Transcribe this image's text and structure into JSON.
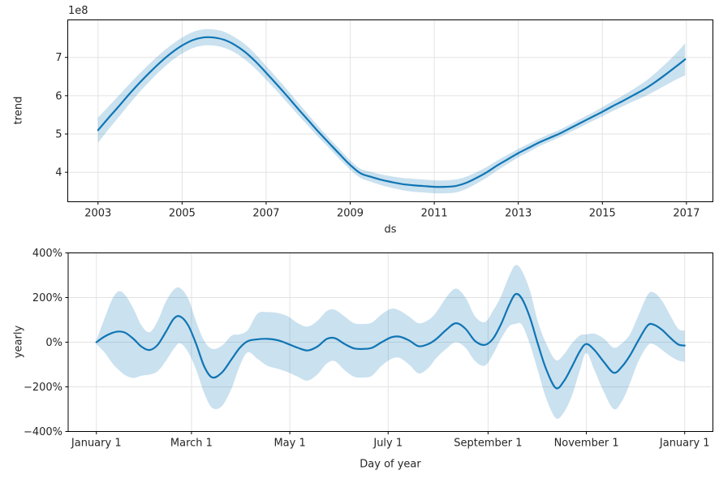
{
  "figure": {
    "background": "#ffffff",
    "colors": {
      "line": "#0f75b4",
      "band": "rgba(15,117,180,0.22)",
      "grid": "#e3e3e3",
      "spine": "#000000",
      "text": "#262626"
    }
  },
  "chart_data": [
    {
      "type": "line",
      "name": "trend-component",
      "title": "",
      "xlabel": "ds",
      "ylabel": "trend",
      "offset_text": "1e8",
      "grid": true,
      "legend_position": "none",
      "xlim": [
        2002.28,
        2017.63
      ],
      "ylim": [
        3.23,
        7.98
      ],
      "x_ticks": [
        {
          "value": 2003,
          "label": "2003"
        },
        {
          "value": 2005,
          "label": "2005"
        },
        {
          "value": 2007,
          "label": "2007"
        },
        {
          "value": 2009,
          "label": "2009"
        },
        {
          "value": 2011,
          "label": "2011"
        },
        {
          "value": 2013,
          "label": "2013"
        },
        {
          "value": 2015,
          "label": "2015"
        },
        {
          "value": 2017,
          "label": "2017"
        }
      ],
      "y_ticks": [
        {
          "value": 4,
          "label": "4"
        },
        {
          "value": 5,
          "label": "5"
        },
        {
          "value": 6,
          "label": "6"
        },
        {
          "value": 7,
          "label": "7"
        }
      ],
      "y_unit": "1e8",
      "series": [
        {
          "name": "trend",
          "points_format": [
            "x_year",
            "value_1e8",
            "lower_1e8",
            "upper_1e8"
          ],
          "points": [
            [
              2003.0,
              5.1,
              4.77,
              5.43
            ],
            [
              2003.25,
              5.42,
              5.12,
              5.72
            ],
            [
              2003.5,
              5.73,
              5.45,
              6.01
            ],
            [
              2003.75,
              6.05,
              5.79,
              6.31
            ],
            [
              2004.0,
              6.35,
              6.11,
              6.59
            ],
            [
              2004.25,
              6.63,
              6.4,
              6.86
            ],
            [
              2004.5,
              6.89,
              6.67,
              7.11
            ],
            [
              2004.75,
              7.12,
              6.91,
              7.33
            ],
            [
              2005.0,
              7.31,
              7.1,
              7.52
            ],
            [
              2005.25,
              7.45,
              7.24,
              7.66
            ],
            [
              2005.5,
              7.52,
              7.31,
              7.73
            ],
            [
              2005.75,
              7.52,
              7.31,
              7.73
            ],
            [
              2006.0,
              7.46,
              7.25,
              7.67
            ],
            [
              2006.25,
              7.33,
              7.13,
              7.53
            ],
            [
              2006.5,
              7.14,
              6.94,
              7.34
            ],
            [
              2006.75,
              6.89,
              6.7,
              7.08
            ],
            [
              2007.0,
              6.6,
              6.42,
              6.78
            ],
            [
              2007.25,
              6.3,
              6.13,
              6.47
            ],
            [
              2007.5,
              5.99,
              5.82,
              6.16
            ],
            [
              2007.75,
              5.67,
              5.51,
              5.83
            ],
            [
              2008.0,
              5.36,
              5.21,
              5.51
            ],
            [
              2008.25,
              5.05,
              4.91,
              5.19
            ],
            [
              2008.5,
              4.76,
              4.63,
              4.89
            ],
            [
              2008.75,
              4.47,
              4.34,
              4.6
            ],
            [
              2009.0,
              4.19,
              4.07,
              4.31
            ],
            [
              2009.25,
              3.97,
              3.85,
              4.09
            ],
            [
              2009.5,
              3.88,
              3.75,
              4.01
            ],
            [
              2009.75,
              3.8,
              3.66,
              3.94
            ],
            [
              2010.0,
              3.74,
              3.59,
              3.89
            ],
            [
              2010.25,
              3.69,
              3.53,
              3.85
            ],
            [
              2010.5,
              3.66,
              3.49,
              3.83
            ],
            [
              2010.75,
              3.64,
              3.47,
              3.81
            ],
            [
              2011.0,
              3.62,
              3.45,
              3.79
            ],
            [
              2011.25,
              3.62,
              3.45,
              3.79
            ],
            [
              2011.5,
              3.64,
              3.47,
              3.81
            ],
            [
              2011.75,
              3.72,
              3.56,
              3.88
            ],
            [
              2012.0,
              3.85,
              3.7,
              4.0
            ],
            [
              2012.25,
              4.0,
              3.86,
              4.14
            ],
            [
              2012.5,
              4.18,
              4.05,
              4.31
            ],
            [
              2012.75,
              4.34,
              4.22,
              4.46
            ],
            [
              2013.0,
              4.5,
              4.39,
              4.61
            ],
            [
              2013.25,
              4.64,
              4.53,
              4.75
            ],
            [
              2013.5,
              4.78,
              4.68,
              4.88
            ],
            [
              2013.75,
              4.9,
              4.8,
              5.0
            ],
            [
              2014.0,
              5.02,
              4.92,
              5.12
            ],
            [
              2014.25,
              5.16,
              5.06,
              5.26
            ],
            [
              2014.5,
              5.3,
              5.19,
              5.41
            ],
            [
              2014.75,
              5.44,
              5.33,
              5.55
            ],
            [
              2015.0,
              5.58,
              5.46,
              5.7
            ],
            [
              2015.25,
              5.73,
              5.6,
              5.86
            ],
            [
              2015.5,
              5.87,
              5.73,
              6.01
            ],
            [
              2015.75,
              6.02,
              5.86,
              6.18
            ],
            [
              2016.0,
              6.17,
              5.98,
              6.36
            ],
            [
              2016.25,
              6.35,
              6.12,
              6.58
            ],
            [
              2016.5,
              6.55,
              6.27,
              6.83
            ],
            [
              2016.75,
              6.76,
              6.42,
              7.1
            ],
            [
              2016.97,
              6.95,
              6.53,
              7.37
            ]
          ]
        }
      ]
    },
    {
      "type": "line",
      "name": "yearly-seasonality-component",
      "title": "",
      "xlabel": "Day of year",
      "ylabel": "yearly",
      "grid": true,
      "legend_position": "none",
      "xlim": [
        -17.5,
        382.5
      ],
      "ylim": [
        -400,
        400
      ],
      "x_ticks": [
        {
          "value": 0,
          "label": "January 1"
        },
        {
          "value": 59,
          "label": "March 1"
        },
        {
          "value": 120,
          "label": "May 1"
        },
        {
          "value": 181,
          "label": "July 1"
        },
        {
          "value": 243,
          "label": "September 1"
        },
        {
          "value": 304,
          "label": "November 1"
        },
        {
          "value": 365,
          "label": "January 1"
        }
      ],
      "y_ticks": [
        {
          "value": 400,
          "label": "400%"
        },
        {
          "value": 200,
          "label": "200%"
        },
        {
          "value": 0,
          "label": "0%"
        },
        {
          "value": -200,
          "label": "−200%"
        },
        {
          "value": -400,
          "label": "−400%"
        }
      ],
      "y_unit": "percent",
      "series": [
        {
          "name": "yearly",
          "points_format": [
            "day_of_year",
            "value_pct",
            "lower_pct",
            "upper_pct"
          ],
          "points": [
            [
              0,
              0,
              -8,
              8
            ],
            [
              5,
              25,
              -45,
              105
            ],
            [
              10,
              42,
              -95,
              195
            ],
            [
              14,
              48,
              -125,
              228
            ],
            [
              18,
              42,
              -148,
              210
            ],
            [
              23,
              15,
              -160,
              150
            ],
            [
              28,
              -20,
              -150,
              75
            ],
            [
              33,
              -35,
              -145,
              45
            ],
            [
              38,
              -12,
              -130,
              95
            ],
            [
              43,
              45,
              -85,
              180
            ],
            [
              48,
              105,
              -30,
              235
            ],
            [
              52,
              115,
              -5,
              242
            ],
            [
              57,
              75,
              -45,
              195
            ],
            [
              62,
              -10,
              -125,
              90
            ],
            [
              67,
              -110,
              -230,
              5
            ],
            [
              72,
              -158,
              -295,
              -30
            ],
            [
              78,
              -135,
              -285,
              -15
            ],
            [
              84,
              -75,
              -205,
              30
            ],
            [
              89,
              -25,
              -105,
              35
            ],
            [
              94,
              5,
              -45,
              55
            ],
            [
              100,
              13,
              -75,
              128
            ],
            [
              106,
              15,
              -105,
              135
            ],
            [
              113,
              8,
              -120,
              130
            ],
            [
              119,
              -8,
              -135,
              115
            ],
            [
              125,
              -25,
              -155,
              85
            ],
            [
              131,
              -37,
              -172,
              70
            ],
            [
              137,
              -20,
              -145,
              95
            ],
            [
              143,
              15,
              -95,
              140
            ],
            [
              148,
              18,
              -85,
              145
            ],
            [
              154,
              -8,
              -125,
              115
            ],
            [
              160,
              -28,
              -155,
              85
            ],
            [
              166,
              -30,
              -158,
              82
            ],
            [
              171,
              -25,
              -150,
              88
            ],
            [
              177,
              0,
              -105,
              125
            ],
            [
              183,
              22,
              -75,
              150
            ],
            [
              188,
              25,
              -70,
              142
            ],
            [
              194,
              8,
              -100,
              115
            ],
            [
              200,
              -18,
              -140,
              85
            ],
            [
              206,
              -8,
              -115,
              100
            ],
            [
              211,
              15,
              -70,
              135
            ],
            [
              217,
              55,
              -30,
              200
            ],
            [
              223,
              85,
              0,
              240
            ],
            [
              229,
              60,
              -25,
              200
            ],
            [
              235,
              5,
              -85,
              115
            ],
            [
              241,
              -12,
              -105,
              90
            ],
            [
              246,
              15,
              -55,
              140
            ],
            [
              251,
              80,
              15,
              205
            ],
            [
              256,
              165,
              70,
              295
            ],
            [
              260,
              215,
              82,
              345
            ],
            [
              264,
              195,
              78,
              320
            ],
            [
              269,
              110,
              -10,
              230
            ],
            [
              274,
              -10,
              -130,
              90
            ],
            [
              279,
              -120,
              -250,
              -5
            ],
            [
              285,
              -205,
              -340,
              -80
            ],
            [
              290,
              -175,
              -315,
              -55
            ],
            [
              295,
              -110,
              -240,
              -5
            ],
            [
              300,
              -40,
              -125,
              30
            ],
            [
              304,
              -8,
              -48,
              35
            ],
            [
              309,
              -35,
              -125,
              38
            ],
            [
              315,
              -90,
              -225,
              15
            ],
            [
              321,
              -137,
              -300,
              -25
            ],
            [
              326,
              -110,
              -265,
              -5
            ],
            [
              331,
              -60,
              -185,
              35
            ],
            [
              336,
              5,
              -90,
              115
            ],
            [
              342,
              75,
              -15,
              212
            ],
            [
              346,
              78,
              -10,
              222
            ],
            [
              351,
              55,
              -35,
              185
            ],
            [
              356,
              20,
              -62,
              120
            ],
            [
              361,
              -10,
              -82,
              60
            ],
            [
              365,
              -15,
              -88,
              52
            ]
          ]
        }
      ]
    }
  ]
}
